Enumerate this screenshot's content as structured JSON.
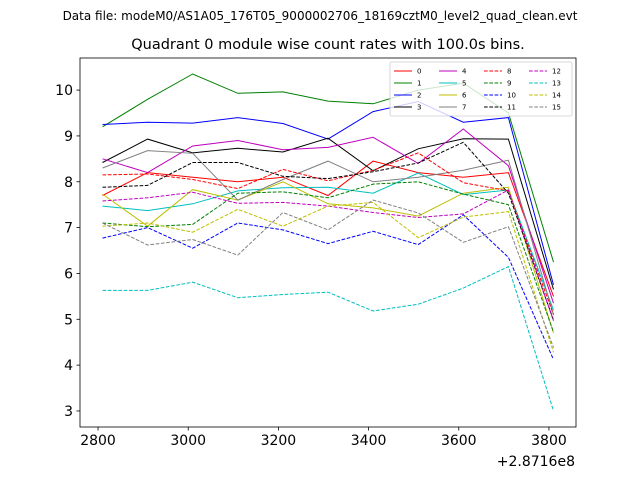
{
  "figure": {
    "suptitle": "Data file: modeM0/AS1A05_176T05_9000002706_18169cztM0_level2_quad_clean.evt",
    "title": "Quadrant 0 module wise count rates with 100.0s bins."
  },
  "chart_data": {
    "type": "line",
    "x_offset_label": "+2.8716e8",
    "x": [
      2810,
      2910,
      3010,
      3110,
      3210,
      3310,
      3410,
      3510,
      3610,
      3710,
      3810
    ],
    "xlim": [
      2760,
      3860
    ],
    "ylim": [
      2.65,
      10.7
    ],
    "xticks": [
      2800,
      3000,
      3200,
      3400,
      3600,
      3800
    ],
    "yticks": [
      3,
      4,
      5,
      6,
      7,
      8,
      9,
      10
    ],
    "legend_position": "upper right",
    "legend_columns": 4,
    "series": [
      {
        "name": "0",
        "color": "#ff0000",
        "dash": "solid",
        "values": [
          7.7,
          8.2,
          8.1,
          8.0,
          8.1,
          7.7,
          8.45,
          8.2,
          8.1,
          8.2,
          5.5
        ]
      },
      {
        "name": "1",
        "color": "#008000",
        "dash": "solid",
        "values": [
          9.2,
          9.8,
          10.35,
          9.93,
          9.96,
          9.76,
          9.7,
          10.0,
          10.15,
          9.5,
          6.25
        ]
      },
      {
        "name": "2",
        "color": "#0000ff",
        "dash": "solid",
        "values": [
          9.25,
          9.3,
          9.28,
          9.4,
          9.27,
          8.93,
          9.53,
          9.75,
          9.3,
          9.4,
          5.75
        ]
      },
      {
        "name": "3",
        "color": "#000000",
        "dash": "solid",
        "values": [
          8.42,
          8.93,
          8.63,
          8.73,
          8.65,
          8.95,
          8.24,
          8.72,
          8.94,
          8.93,
          5.65
        ]
      },
      {
        "name": "4",
        "color": "#bf00bf",
        "dash": "solid",
        "values": [
          8.5,
          8.2,
          8.78,
          8.9,
          8.7,
          8.75,
          8.97,
          8.4,
          9.15,
          8.35,
          5.35
        ]
      },
      {
        "name": "5",
        "color": "#00bfbf",
        "dash": "solid",
        "values": [
          7.47,
          7.37,
          7.52,
          7.8,
          7.87,
          7.88,
          7.75,
          8.19,
          7.72,
          7.82,
          5.2
        ]
      },
      {
        "name": "6",
        "color": "#bfbf00",
        "dash": "solid",
        "values": [
          7.73,
          7.03,
          7.83,
          7.6,
          8.0,
          7.52,
          7.43,
          7.25,
          7.75,
          7.88,
          4.7
        ]
      },
      {
        "name": "7",
        "color": "#808080",
        "dash": "solid",
        "values": [
          8.3,
          8.68,
          8.62,
          7.6,
          8.05,
          8.45,
          8.0,
          8.1,
          8.25,
          8.47,
          5.1
        ]
      },
      {
        "name": "8",
        "color": "#ff0000",
        "dash": "dashed",
        "values": [
          8.15,
          8.17,
          8.05,
          7.85,
          8.27,
          8.02,
          8.25,
          8.63,
          7.98,
          7.8,
          5.1
        ]
      },
      {
        "name": "9",
        "color": "#008000",
        "dash": "dashed",
        "values": [
          7.1,
          7.02,
          7.07,
          7.75,
          7.78,
          7.65,
          7.95,
          8.0,
          7.73,
          7.5,
          4.72
        ]
      },
      {
        "name": "10",
        "color": "#0000ff",
        "dash": "dashed",
        "values": [
          6.77,
          7.0,
          6.55,
          7.1,
          6.95,
          6.65,
          6.92,
          6.63,
          7.28,
          6.35,
          4.12
        ]
      },
      {
        "name": "11",
        "color": "#000000",
        "dash": "dashed",
        "values": [
          7.88,
          7.92,
          8.42,
          8.42,
          8.12,
          8.07,
          8.22,
          8.41,
          8.86,
          7.75,
          4.98
        ]
      },
      {
        "name": "12",
        "color": "#bf00bf",
        "dash": "dashed",
        "values": [
          7.58,
          7.65,
          7.77,
          7.53,
          7.55,
          7.47,
          7.33,
          7.22,
          7.3,
          7.82,
          4.97
        ]
      },
      {
        "name": "13",
        "color": "#00bfbf",
        "dash": "dashed",
        "values": [
          5.63,
          5.63,
          5.81,
          5.47,
          5.54,
          5.59,
          5.18,
          5.33,
          5.68,
          6.15,
          3.0
        ]
      },
      {
        "name": "14",
        "color": "#bfbf00",
        "dash": "dashed",
        "values": [
          7.03,
          7.1,
          6.9,
          7.4,
          7.03,
          7.47,
          7.55,
          6.78,
          7.23,
          7.35,
          4.28
        ]
      },
      {
        "name": "15",
        "color": "#808080",
        "dash": "dashed",
        "values": [
          7.1,
          6.62,
          6.74,
          6.4,
          7.33,
          6.95,
          7.6,
          7.32,
          6.68,
          7.02,
          4.38
        ]
      }
    ]
  }
}
